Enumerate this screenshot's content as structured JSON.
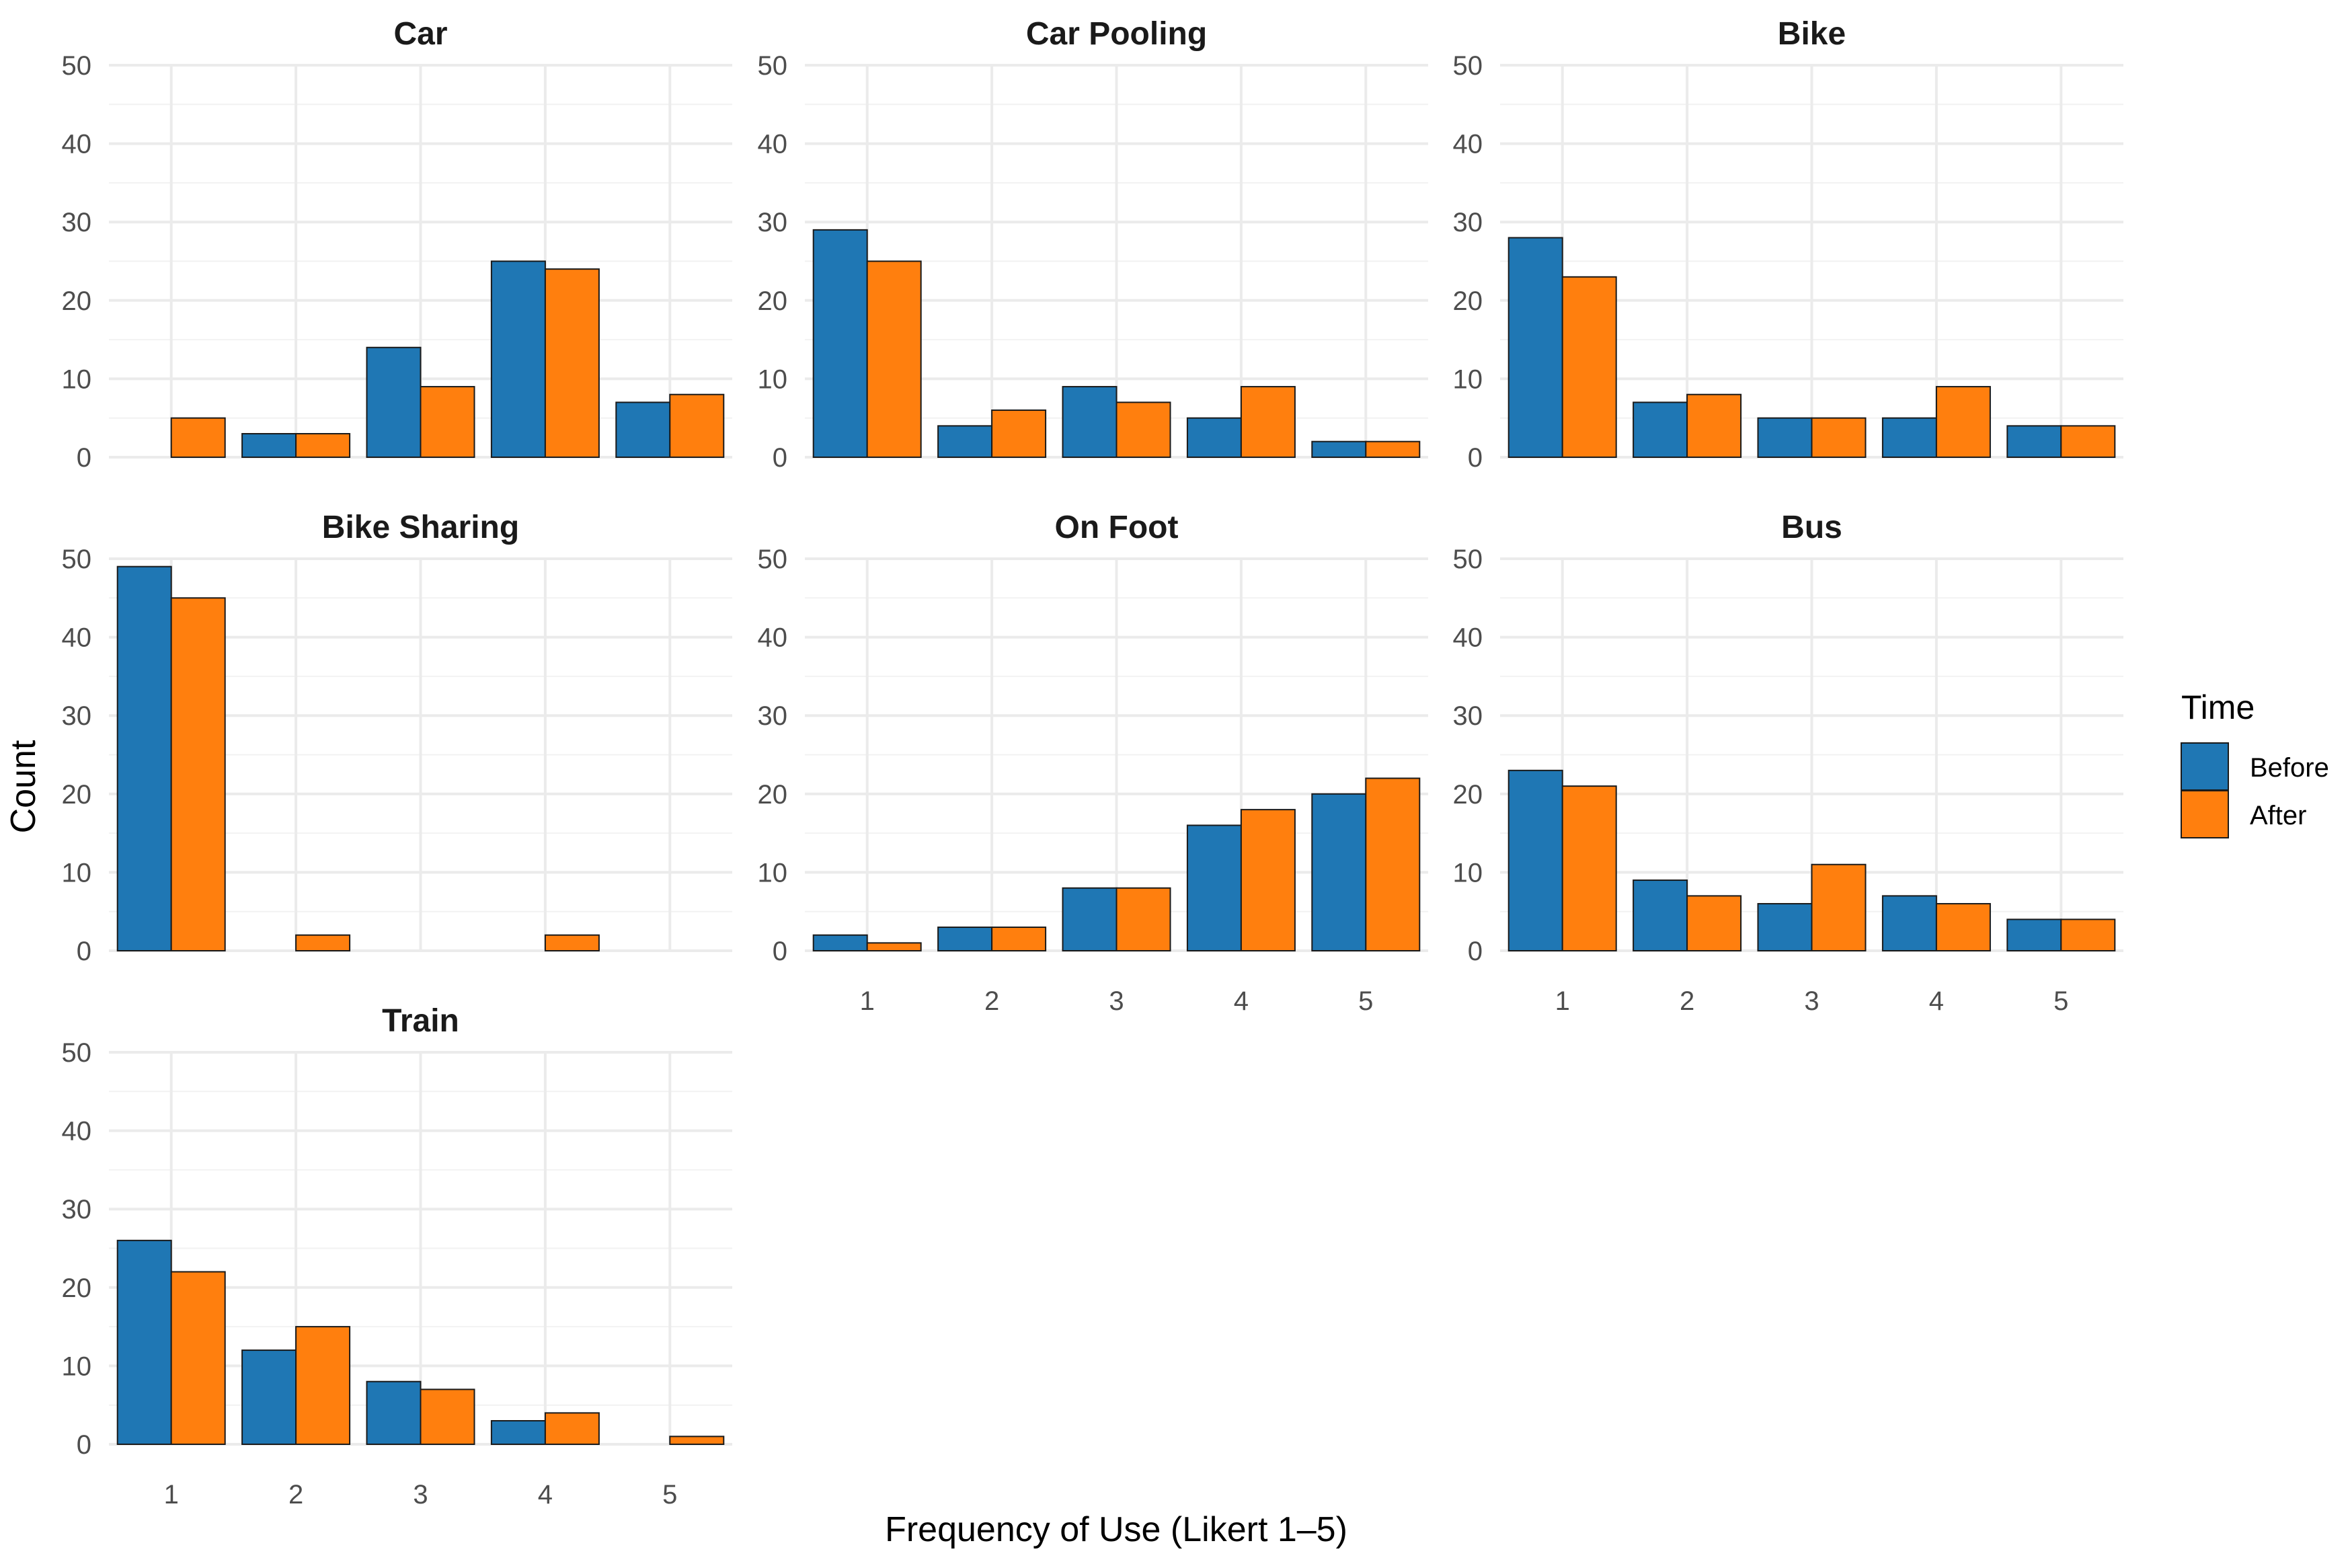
{
  "chart_data": {
    "type": "bar",
    "layout": "faceted 3x3 grid, 7 panels",
    "xlabel": "Frequency of Use (Likert 1–5)",
    "ylabel": "Count",
    "categories": [
      "1",
      "2",
      "3",
      "4",
      "5"
    ],
    "ylim": [
      0,
      50
    ],
    "y_ticks": [
      "0",
      "10",
      "20",
      "30",
      "40",
      "50"
    ],
    "grid": true,
    "legend": {
      "title": "Time",
      "position": "right",
      "entries": [
        {
          "name": "Before",
          "color": "#1f77b4"
        },
        {
          "name": "After",
          "color": "#ff7f0e"
        }
      ]
    },
    "panels": [
      {
        "title": "Car",
        "before": [
          0,
          3,
          14,
          25,
          7
        ],
        "after": [
          5,
          3,
          9,
          24,
          8
        ]
      },
      {
        "title": "Car Pooling",
        "before": [
          29,
          4,
          9,
          5,
          2
        ],
        "after": [
          25,
          6,
          7,
          9,
          2
        ]
      },
      {
        "title": "Bike",
        "before": [
          28,
          7,
          5,
          5,
          4
        ],
        "after": [
          23,
          8,
          5,
          9,
          4
        ]
      },
      {
        "title": "Bike Sharing",
        "before": [
          49,
          0,
          0,
          0,
          0
        ],
        "after": [
          45,
          2,
          0,
          2,
          0
        ]
      },
      {
        "title": "On Foot",
        "before": [
          2,
          3,
          8,
          16,
          20
        ],
        "after": [
          1,
          3,
          8,
          18,
          22
        ]
      },
      {
        "title": "Bus",
        "before": [
          23,
          9,
          6,
          7,
          4
        ],
        "after": [
          21,
          7,
          11,
          6,
          4
        ]
      },
      {
        "title": "Train",
        "before": [
          26,
          12,
          8,
          3,
          0
        ],
        "after": [
          22,
          15,
          7,
          4,
          1
        ]
      }
    ]
  }
}
